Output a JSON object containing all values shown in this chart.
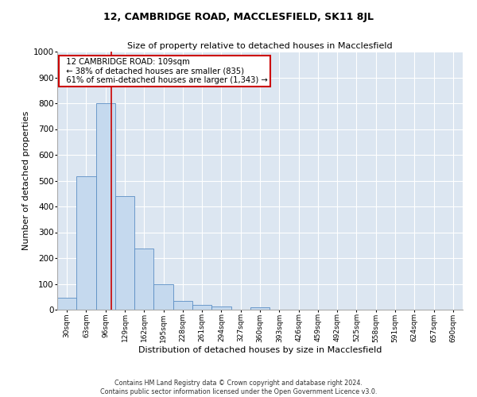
{
  "title": "12, CAMBRIDGE ROAD, MACCLESFIELD, SK11 8JL",
  "subtitle": "Size of property relative to detached houses in Macclesfield",
  "xlabel": "Distribution of detached houses by size in Macclesfield",
  "ylabel": "Number of detached properties",
  "footer_line1": "Contains HM Land Registry data © Crown copyright and database right 2024.",
  "footer_line2": "Contains public sector information licensed under the Open Government Licence v3.0.",
  "bin_labels": [
    "30sqm",
    "63sqm",
    "96sqm",
    "129sqm",
    "162sqm",
    "195sqm",
    "228sqm",
    "261sqm",
    "294sqm",
    "327sqm",
    "360sqm",
    "393sqm",
    "426sqm",
    "459sqm",
    "492sqm",
    "525sqm",
    "558sqm",
    "591sqm",
    "624sqm",
    "657sqm",
    "690sqm"
  ],
  "bar_heights": [
    47,
    518,
    800,
    440,
    238,
    97,
    35,
    18,
    11,
    0,
    8,
    0,
    0,
    0,
    0,
    0,
    0,
    0,
    0,
    0,
    0
  ],
  "bar_color": "#c5d9ee",
  "bar_edge_color": "#5b8ec4",
  "background_color": "#dce6f1",
  "grid_color": "#ffffff",
  "ylim": [
    0,
    1000
  ],
  "yticks": [
    0,
    100,
    200,
    300,
    400,
    500,
    600,
    700,
    800,
    900,
    1000
  ],
  "property_line_x": 2.32,
  "property_line_color": "#cc0000",
  "annotation_text": "  12 CAMBRIDGE ROAD: 109sqm\n  ← 38% of detached houses are smaller (835)\n  61% of semi-detached houses are larger (1,343) →",
  "annotation_box_color": "#ffffff",
  "annotation_box_edge_color": "#cc0000",
  "title_fontsize": 9,
  "subtitle_fontsize": 8,
  "xlabel_fontsize": 8,
  "ylabel_fontsize": 8
}
